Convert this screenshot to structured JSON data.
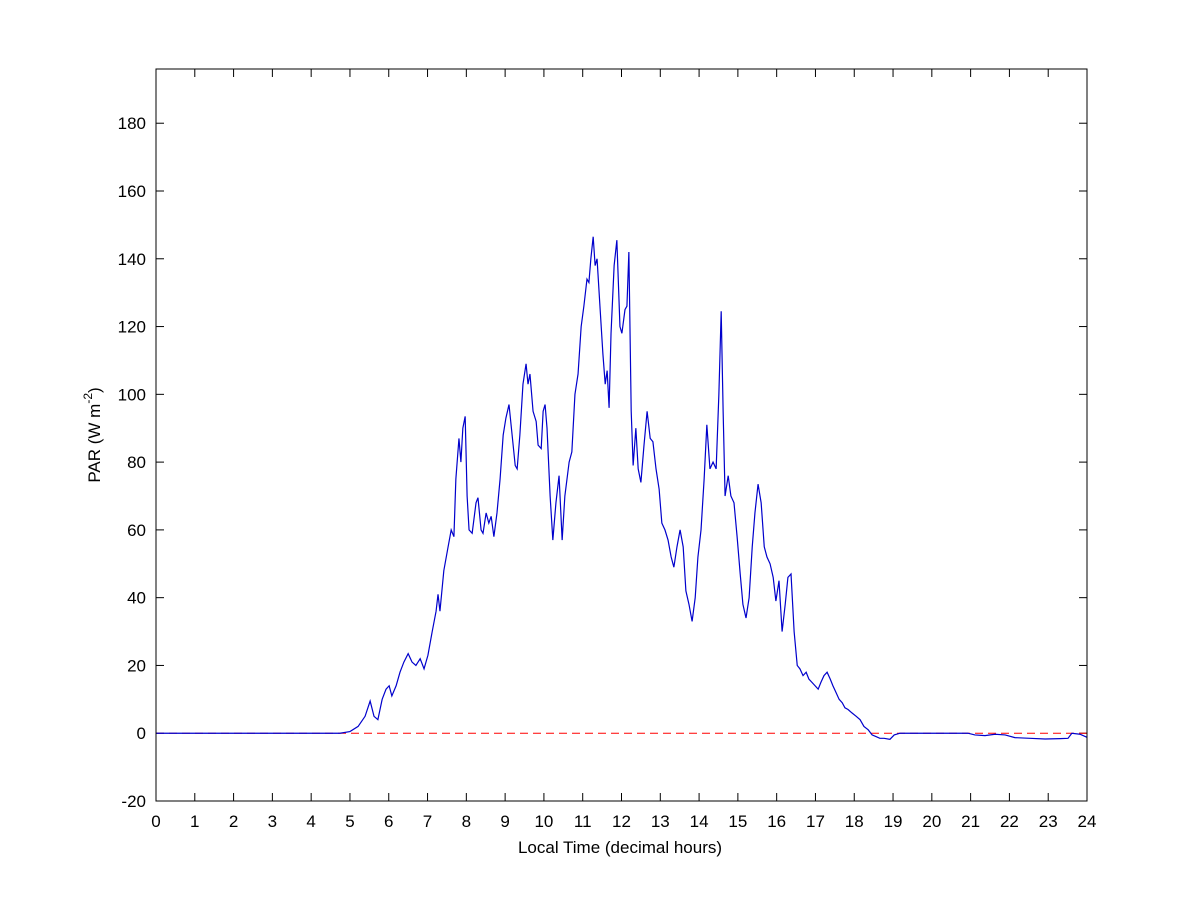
{
  "chart_data": {
    "type": "line",
    "xlabel": "Local Time (decimal hours)",
    "ylabel": {
      "text": "PAR (W m",
      "superscript": "-2",
      "suffix": ")"
    },
    "xlim": [
      0,
      24
    ],
    "ylim": [
      -20,
      196
    ],
    "xticks": [
      0,
      1,
      2,
      3,
      4,
      5,
      6,
      7,
      8,
      9,
      10,
      11,
      12,
      13,
      14,
      15,
      16,
      17,
      18,
      19,
      20,
      21,
      22,
      23,
      24
    ],
    "yticks": [
      -20,
      0,
      20,
      40,
      60,
      80,
      100,
      120,
      140,
      160,
      180
    ],
    "reference_line": {
      "value": 0,
      "color": "#ff0000",
      "style": "dashed"
    },
    "series": [
      {
        "color": "#0000cc",
        "x": [
          0,
          4.74,
          5.0,
          5.21,
          5.39,
          5.52,
          5.62,
          5.72,
          5.83,
          5.93,
          6.01,
          6.08,
          6.19,
          6.29,
          6.39,
          6.5,
          6.6,
          6.7,
          6.81,
          6.91,
          7.01,
          7.12,
          7.22,
          7.27,
          7.32,
          7.42,
          7.53,
          7.61,
          7.68,
          7.73,
          7.81,
          7.86,
          7.91,
          7.97,
          8.02,
          8.07,
          8.15,
          8.25,
          8.3,
          8.38,
          8.43,
          8.51,
          8.58,
          8.64,
          8.71,
          8.79,
          8.87,
          8.95,
          9.02,
          9.1,
          9.18,
          9.26,
          9.31,
          9.38,
          9.46,
          9.54,
          9.59,
          9.64,
          9.72,
          9.8,
          9.85,
          9.93,
          9.98,
          10.03,
          10.08,
          10.16,
          10.23,
          10.31,
          10.39,
          10.47,
          10.54,
          10.65,
          10.72,
          10.8,
          10.88,
          10.96,
          11.03,
          11.11,
          11.16,
          11.21,
          11.27,
          11.32,
          11.37,
          11.45,
          11.52,
          11.58,
          11.63,
          11.68,
          11.73,
          11.81,
          11.88,
          11.96,
          12.01,
          12.09,
          12.14,
          12.19,
          12.25,
          12.3,
          12.37,
          12.43,
          12.5,
          12.58,
          12.66,
          12.74,
          12.81,
          12.89,
          12.97,
          13.04,
          13.12,
          13.2,
          13.28,
          13.35,
          13.43,
          13.51,
          13.59,
          13.66,
          13.74,
          13.82,
          13.9,
          13.97,
          14.05,
          14.13,
          14.2,
          14.28,
          14.36,
          14.44,
          14.51,
          14.57,
          14.62,
          14.67,
          14.75,
          14.82,
          14.9,
          14.98,
          15.06,
          15.13,
          15.21,
          15.29,
          15.37,
          15.44,
          15.52,
          15.6,
          15.68,
          15.75,
          15.83,
          15.91,
          15.98,
          16.06,
          16.14,
          16.22,
          16.29,
          16.37,
          16.45,
          16.53,
          16.6,
          16.68,
          16.76,
          16.83,
          16.91,
          16.99,
          17.07,
          17.14,
          17.22,
          17.3,
          17.38,
          17.45,
          17.53,
          17.61,
          17.69,
          17.76,
          17.84,
          17.94,
          18.05,
          18.15,
          18.25,
          18.36,
          18.46,
          18.56,
          18.66,
          18.77,
          18.92,
          19.03,
          19.18,
          20.93,
          21.11,
          21.37,
          21.63,
          21.89,
          22.14,
          22.53,
          22.92,
          23.31,
          23.51,
          23.61,
          23.82,
          24.0
        ],
        "values": [
          0,
          0,
          0.5,
          2,
          5,
          9.5,
          5,
          4,
          10,
          13,
          14,
          11,
          14,
          18,
          21,
          23.5,
          21,
          20,
          22,
          19,
          23,
          30,
          36,
          41,
          36,
          48,
          55,
          60,
          58,
          75,
          87,
          80,
          90,
          93.5,
          70,
          60,
          59,
          68,
          69.5,
          60,
          59,
          65,
          62,
          64,
          58,
          65,
          75,
          88,
          93,
          97,
          88,
          79,
          78,
          88,
          103,
          109,
          103,
          106,
          95,
          92,
          85,
          84,
          95,
          97,
          90,
          70,
          57,
          68,
          76,
          57,
          70,
          80,
          83,
          100,
          106,
          120,
          126,
          134,
          133,
          140,
          146.5,
          138,
          140,
          125,
          112,
          103,
          107,
          96,
          118,
          138,
          145.5,
          120,
          118,
          125,
          126,
          142,
          95,
          79,
          90,
          78,
          74,
          85,
          95,
          87,
          86,
          78,
          72,
          62,
          60,
          57,
          52,
          49,
          55,
          60,
          55,
          42,
          38,
          33,
          40,
          52,
          60,
          75,
          91,
          78,
          80,
          78,
          100,
          124.5,
          95,
          70,
          76,
          70,
          68,
          58,
          47,
          38,
          34,
          40,
          55,
          65,
          73.5,
          68,
          55,
          52,
          50,
          46,
          39,
          45,
          30,
          38,
          46,
          47,
          30,
          20,
          19,
          17,
          18,
          16,
          15,
          14,
          13,
          15,
          17,
          18,
          16,
          14,
          12,
          10,
          9,
          7.5,
          7,
          6,
          5,
          4,
          2,
          1,
          -0.5,
          -1,
          -1.5,
          -1.5,
          -1.8,
          -0.5,
          0,
          0,
          -0.5,
          -0.7,
          -0.3,
          -0.5,
          -1.3,
          -1.5,
          -1.7,
          -1.6,
          -1.5,
          0,
          -0.3,
          -1.2
        ]
      }
    ]
  }
}
